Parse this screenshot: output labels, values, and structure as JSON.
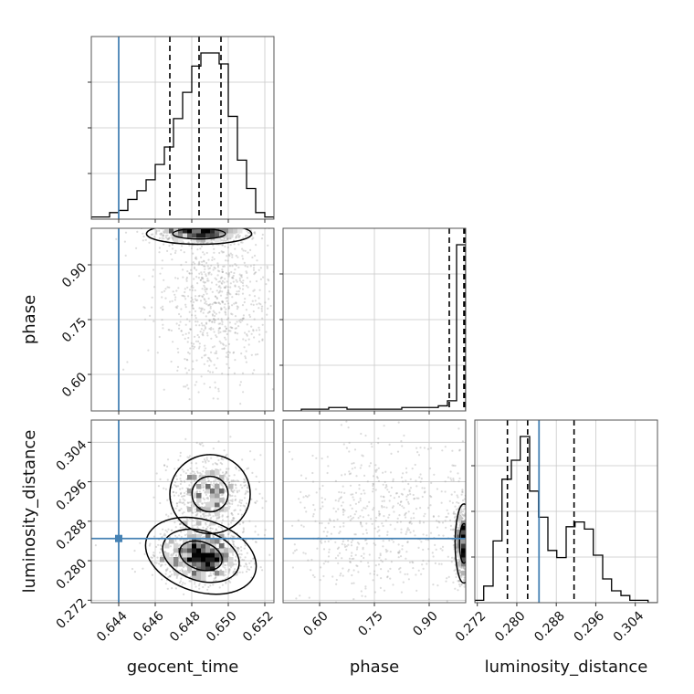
{
  "chart_data": {
    "type": "corner",
    "parameters": [
      "geocent_time",
      "phase",
      "luminosity_distance"
    ],
    "truth": {
      "geocent_time": 0.644,
      "luminosity_distance": 0.2845
    },
    "colors": {
      "truth": "#4682b4",
      "hist": "#000000",
      "grid": "#c8c8c8",
      "scatter": "#9a9a9a"
    },
    "grid": true,
    "axes": {
      "geocent_time": {
        "range": [
          0.6425,
          0.6525
        ],
        "ticks": [
          0.644,
          0.646,
          0.648,
          0.65,
          0.652
        ],
        "tick_labels": [
          "0.644",
          "0.646",
          "0.648",
          "0.650",
          "0.652"
        ]
      },
      "phase": {
        "range": [
          0.5,
          1.0
        ],
        "ticks": [
          0.6,
          0.75,
          0.9
        ],
        "tick_labels": [
          "0.60",
          "0.75",
          "0.90"
        ]
      },
      "luminosity_distance": {
        "range": [
          0.2715,
          0.3085
        ],
        "ticks": [
          0.272,
          0.28,
          0.288,
          0.296,
          0.304
        ],
        "tick_labels": [
          "0.272",
          "0.280",
          "0.288",
          "0.296",
          "0.304"
        ]
      }
    },
    "marginals": [
      {
        "parameter": "geocent_time",
        "quantiles": [
          0.6468,
          0.6484,
          0.6496
        ],
        "bin_edges": [
          0.6425,
          0.643,
          0.6435,
          0.644,
          0.6445,
          0.645,
          0.6455,
          0.646,
          0.6465,
          0.647,
          0.6475,
          0.648,
          0.6485,
          0.649,
          0.6495,
          0.65,
          0.6505,
          0.651,
          0.6515,
          0.652,
          0.6525
        ],
        "counts": [
          1,
          1,
          3,
          4,
          9,
          13,
          18,
          25,
          33,
          46,
          58,
          70,
          76,
          76,
          71,
          47,
          27,
          14,
          3,
          1
        ]
      },
      {
        "parameter": "phase",
        "quantiles": [
          0.955,
          0.995,
          0.998
        ],
        "bin_edges": [
          0.5,
          0.525,
          0.55,
          0.575,
          0.6,
          0.625,
          0.65,
          0.675,
          0.7,
          0.725,
          0.75,
          0.775,
          0.8,
          0.825,
          0.85,
          0.875,
          0.9,
          0.925,
          0.95,
          0.975,
          1.0
        ],
        "counts": [
          0,
          0,
          1,
          1,
          1,
          2,
          2,
          1,
          1,
          1,
          1,
          1,
          1,
          2,
          2,
          2,
          2,
          3,
          6,
          98
        ]
      },
      {
        "parameter": "luminosity_distance",
        "quantiles": [
          0.2781,
          0.2822,
          0.2916
        ],
        "bin_edges": [
          0.2715,
          0.2733,
          0.2752,
          0.277,
          0.2789,
          0.2807,
          0.2826,
          0.2844,
          0.2863,
          0.2881,
          0.29,
          0.2918,
          0.2937,
          0.2955,
          0.2974,
          0.2992,
          0.3011,
          0.3029,
          0.3048,
          0.3066,
          0.3085
        ],
        "counts": [
          1,
          7,
          26,
          52,
          60,
          70,
          47,
          36,
          22,
          19,
          32,
          34,
          31,
          20,
          10,
          5,
          3,
          1,
          1,
          0
        ]
      }
    ],
    "pairs": [
      {
        "x": "geocent_time",
        "y": "phase",
        "description": "samples concentrated at phase ~0.98-1.0 around geocent_time 0.6475-0.6492, spread down to phase ~0.58 at geocent_time ~0.650"
      },
      {
        "x": "geocent_time",
        "y": "luminosity_distance",
        "description": "main mode near geocent_time 0.6487, luminosity_distance 0.280; secondary mode near 0.6490, 0.294"
      },
      {
        "x": "phase",
        "y": "luminosity_distance",
        "description": "samples concentrated at phase ~0.98-1.0 with luminosity_distance ~0.282"
      }
    ]
  }
}
